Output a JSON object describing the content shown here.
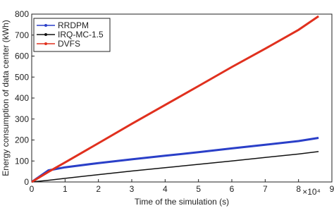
{
  "chart_data": {
    "type": "line",
    "x_label": "Time of the simulation (s)",
    "x_exponent_label": "×10⁴",
    "y_label": "Energy consumption of data center (kWh)",
    "x": [
      0,
      0.5,
      1,
      2,
      3,
      4,
      5,
      6,
      7,
      8,
      8.6
    ],
    "series": [
      {
        "name": "RRDPM",
        "color": "#2a3fc8",
        "values": [
          0,
          55,
          70,
          90,
          108,
          125,
          142,
          160,
          177,
          195,
          210
        ]
      },
      {
        "name": "IRQ-MC-1.5",
        "color": "#111111",
        "values": [
          0,
          8,
          17,
          35,
          52,
          68,
          84,
          100,
          117,
          133,
          145
        ]
      },
      {
        "name": "DVFS",
        "color": "#e0301e",
        "values": [
          0,
          48,
          93,
          185,
          277,
          367,
          457,
          548,
          635,
          725,
          790
        ]
      }
    ],
    "xlim": [
      0,
      9
    ],
    "xticks": [
      0,
      1,
      2,
      3,
      4,
      5,
      6,
      7,
      8,
      9
    ],
    "ylim": [
      0,
      800
    ],
    "yticks": [
      0,
      100,
      200,
      300,
      400,
      500,
      600,
      700,
      800
    ],
    "legend": "upper left"
  }
}
